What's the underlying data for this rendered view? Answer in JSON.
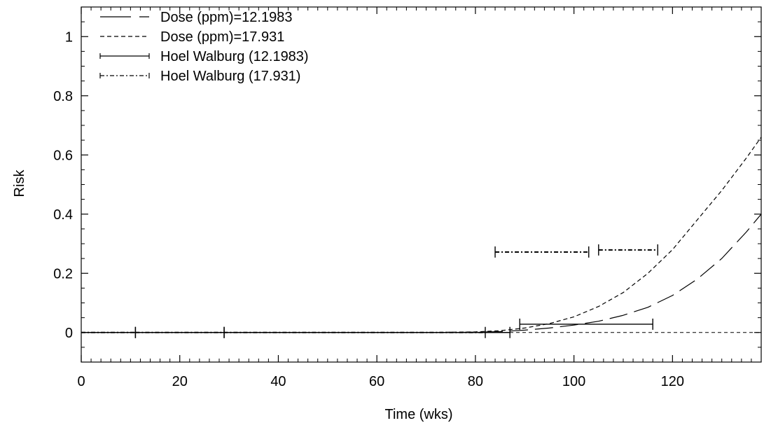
{
  "chart_data": {
    "type": "line",
    "xlabel": "Time (wks)",
    "ylabel": "Risk",
    "xlim": [
      0,
      138
    ],
    "ylim": [
      -0.1,
      1.1
    ],
    "x_ticks": [
      "0",
      "20",
      "40",
      "60",
      "80",
      "100",
      "120"
    ],
    "x_tick_values": [
      0,
      20,
      40,
      60,
      80,
      100,
      120
    ],
    "y_ticks": [
      "0",
      "0.2",
      "0.4",
      "0.6",
      "0.8",
      "1"
    ],
    "y_tick_values": [
      0,
      0.2,
      0.4,
      0.6,
      0.8,
      1
    ],
    "grid": false,
    "legend_position": "top-left",
    "reference_line": 0,
    "series": [
      {
        "name": "Dose (ppm)=12.1983",
        "style": "long-dash",
        "x": [
          0,
          70,
          80,
          85,
          90,
          95,
          100,
          105,
          110,
          115,
          120,
          125,
          130,
          135,
          138
        ],
        "y": [
          0,
          0,
          0.001,
          0.003,
          0.008,
          0.015,
          0.025,
          0.038,
          0.058,
          0.085,
          0.125,
          0.18,
          0.25,
          0.34,
          0.4
        ]
      },
      {
        "name": "Dose (ppm)=17.931",
        "style": "short-dash",
        "x": [
          0,
          70,
          80,
          85,
          90,
          95,
          100,
          105,
          110,
          115,
          120,
          125,
          130,
          135,
          138
        ],
        "y": [
          0,
          0,
          0.002,
          0.006,
          0.015,
          0.03,
          0.053,
          0.088,
          0.135,
          0.2,
          0.28,
          0.38,
          0.48,
          0.59,
          0.66
        ]
      }
    ],
    "intervals": [
      {
        "name": "Hoel Walburg (12.1983)",
        "style": "solid",
        "segments": [
          {
            "x0": 0,
            "x1": 29,
            "y": 0
          },
          {
            "x0": 29,
            "x1": 87,
            "y": 0
          },
          {
            "x0": 89,
            "x1": 116,
            "y": 0.028
          }
        ]
      },
      {
        "name": "Hoel Walburg (17.931)",
        "style": "dotted-dash",
        "segments": [
          {
            "x0": 0,
            "x1": 11,
            "y": 0
          },
          {
            "x0": 11,
            "x1": 82,
            "y": 0
          },
          {
            "x0": 84,
            "x1": 103,
            "y": 0.272
          },
          {
            "x0": 105,
            "x1": 117,
            "y": 0.279
          }
        ]
      }
    ]
  }
}
